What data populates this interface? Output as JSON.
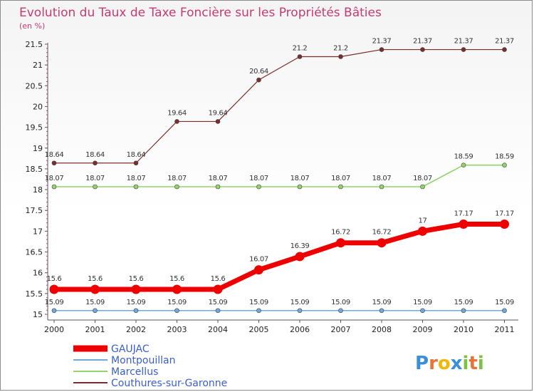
{
  "chart_data": {
    "type": "line",
    "title": "Evolution du Taux de Taxe Foncière sur les Propriétés Bâties",
    "subtitle": "(en %)",
    "xlabel": "",
    "ylabel": "(en %)",
    "categories": [
      "2000",
      "2001",
      "2002",
      "2003",
      "2004",
      "2005",
      "2006",
      "2007",
      "2008",
      "2009",
      "2010",
      "2011"
    ],
    "ylim": [
      15,
      21.5
    ],
    "yticks": [
      "15",
      "15.5",
      "16",
      "16.5",
      "17",
      "17.5",
      "18",
      "18.5",
      "19",
      "19.5",
      "20",
      "20.5",
      "21",
      "21.5"
    ],
    "grid": false,
    "legend_position": "bottom-left",
    "series": [
      {
        "name": "GAUJAC",
        "color": "#ee0000",
        "values": [
          15.6,
          15.6,
          15.6,
          15.6,
          15.6,
          16.07,
          16.39,
          16.72,
          16.72,
          17,
          17.17,
          17.17
        ],
        "labels": [
          "15.6",
          "15.6",
          "15.6",
          "15.6",
          "15.6",
          "16.07",
          "16.39",
          "16.72",
          "16.72",
          "17",
          "17.17",
          "17.17"
        ]
      },
      {
        "name": "Montpouillan",
        "color": "#6fa8dc",
        "values": [
          15.09,
          15.09,
          15.09,
          15.09,
          15.09,
          15.09,
          15.09,
          15.09,
          15.09,
          15.09,
          15.09,
          15.09
        ],
        "labels": [
          "15.09",
          "15.09",
          "15.09",
          "15.09",
          "15.09",
          "15.09",
          "15.09",
          "15.09",
          "15.09",
          "15.09",
          "15.09",
          "15.09"
        ]
      },
      {
        "name": "Marcellus",
        "color": "#93d36b",
        "values": [
          18.07,
          18.07,
          18.07,
          18.07,
          18.07,
          18.07,
          18.07,
          18.07,
          18.07,
          18.07,
          18.59,
          18.59
        ],
        "labels": [
          "18.07",
          "18.07",
          "18.07",
          "18.07",
          "18.07",
          "18.07",
          "18.07",
          "18.07",
          "18.07",
          "18.07",
          "18.59",
          "18.59"
        ]
      },
      {
        "name": "Couthures-sur-Garonne",
        "color": "#7b2d2d",
        "values": [
          18.64,
          18.64,
          18.64,
          19.64,
          19.64,
          20.64,
          21.2,
          21.2,
          21.37,
          21.37,
          21.37,
          21.37
        ],
        "labels": [
          "18.64",
          "18.64",
          "18.64",
          "19.64",
          "19.64",
          "20.64",
          "21.2",
          "21.2",
          "21.37",
          "21.37",
          "21.37",
          "21.37"
        ]
      }
    ]
  },
  "logo": {
    "text": "Proxiti",
    "letters": [
      "P",
      "r",
      "o",
      "x",
      "i",
      "t",
      "i"
    ]
  }
}
